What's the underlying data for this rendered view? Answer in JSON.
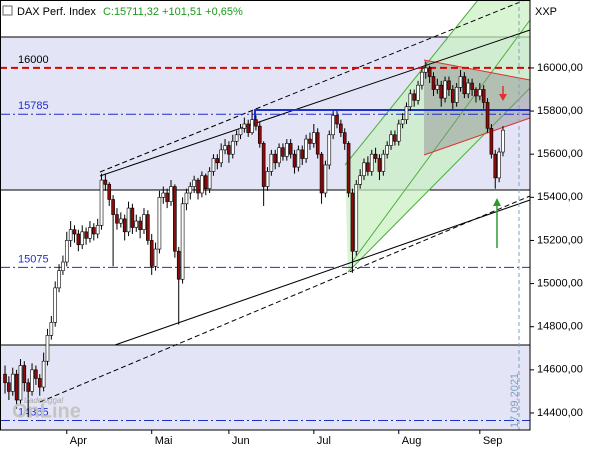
{
  "chart_data": {
    "type": "candlestick",
    "title": "DAX Perf. Index",
    "subtitle": "C:15711,32 +101,51 +0,65%",
    "symbol_label": "XXP",
    "date_marker": "17.09.2021",
    "watermark_small": "tradesignal",
    "watermark_large": "OnLine",
    "up_color": "#ffffff",
    "down_color": "#8b0a0a",
    "ylim": [
      14321,
      16315
    ],
    "yticks": [
      {
        "value": 14400,
        "label": "14400,00"
      },
      {
        "value": 14600,
        "label": "14600,00"
      },
      {
        "value": 14800,
        "label": "14800,00"
      },
      {
        "value": 15000,
        "label": "15000,00"
      },
      {
        "value": 15200,
        "label": "15200,00"
      },
      {
        "value": 15400,
        "label": "15400,00"
      },
      {
        "value": 15600,
        "label": "15600,00"
      },
      {
        "value": 15800,
        "label": "15800,00"
      },
      {
        "value": 16000,
        "label": "16000,00"
      }
    ],
    "xlim": [
      -1.3,
      136
    ],
    "xticks": [
      {
        "value": 16,
        "label": "Apr"
      },
      {
        "value": 38,
        "label": "Mai"
      },
      {
        "value": 58,
        "label": "Jun"
      },
      {
        "value": 80,
        "label": "Jul"
      },
      {
        "value": 102,
        "label": "Aug"
      },
      {
        "value": 123,
        "label": "Sep"
      }
    ],
    "levels": [
      {
        "value": 16000,
        "color": "#e00000",
        "label_color": "#000000",
        "style": "dashed"
      },
      {
        "value": 15785,
        "color": "#1f2fcc",
        "label_color": "#1f2fcc",
        "style": "dashdot"
      },
      {
        "value": 15075,
        "color": "#1f2fcc",
        "label_color": "#1f2fcc",
        "style": "dashdot"
      },
      {
        "value": 14365,
        "color": "#1f2fcc",
        "label_color": "#1f2fcc",
        "style": "dashdot"
      }
    ],
    "ohlc": [
      [
        14580,
        14620,
        14490,
        14540
      ],
      [
        14540,
        14570,
        14460,
        14500
      ],
      [
        14500,
        14610,
        14480,
        14580
      ],
      [
        14580,
        14600,
        14420,
        14460
      ],
      [
        14460,
        14650,
        14440,
        14620
      ],
      [
        14620,
        14640,
        14500,
        14540
      ],
      [
        14540,
        14560,
        14380,
        14500
      ],
      [
        14500,
        14630,
        14480,
        14600
      ],
      [
        14600,
        14620,
        14530,
        14560
      ],
      [
        14560,
        14580,
        14480,
        14520
      ],
      [
        14520,
        14680,
        14500,
        14640
      ],
      [
        14640,
        14790,
        14620,
        14760
      ],
      [
        14760,
        14850,
        14740,
        14820
      ],
      [
        14820,
        15010,
        14800,
        14980
      ],
      [
        14980,
        15090,
        14960,
        15060
      ],
      [
        15060,
        15130,
        15040,
        15100
      ],
      [
        15100,
        15240,
        15080,
        15200
      ],
      [
        15200,
        15290,
        15170,
        15250
      ],
      [
        15250,
        15270,
        15190,
        15230
      ],
      [
        15230,
        15250,
        15150,
        15180
      ],
      [
        15180,
        15270,
        15160,
        15240
      ],
      [
        15240,
        15260,
        15180,
        15210
      ],
      [
        15210,
        15290,
        15190,
        15260
      ],
      [
        15260,
        15280,
        15200,
        15230
      ],
      [
        15230,
        15300,
        15210,
        15270
      ],
      [
        15270,
        15510,
        15250,
        15480
      ],
      [
        15480,
        15510,
        15430,
        15460
      ],
      [
        15460,
        15470,
        15360,
        15390
      ],
      [
        15390,
        15410,
        15080,
        15320
      ],
      [
        15320,
        15350,
        15250,
        15280
      ],
      [
        15280,
        15330,
        15260,
        15300
      ],
      [
        15300,
        15320,
        15200,
        15240
      ],
      [
        15240,
        15380,
        15220,
        15350
      ],
      [
        15350,
        15370,
        15230,
        15260
      ],
      [
        15260,
        15320,
        15240,
        15290
      ],
      [
        15290,
        15310,
        15210,
        15250
      ],
      [
        15250,
        15350,
        15230,
        15320
      ],
      [
        15320,
        15340,
        15180,
        15200
      ],
      [
        15200,
        15230,
        15040,
        15080
      ],
      [
        15080,
        15190,
        15060,
        15160
      ],
      [
        15160,
        15430,
        15140,
        15400
      ],
      [
        15400,
        15450,
        15370,
        15420
      ],
      [
        15420,
        15440,
        15350,
        15380
      ],
      [
        15380,
        15480,
        15360,
        15450
      ],
      [
        15450,
        15460,
        15120,
        15150
      ],
      [
        15150,
        15170,
        14810,
        15020
      ],
      [
        15020,
        15400,
        15000,
        15370
      ],
      [
        15370,
        15440,
        15340,
        15420
      ],
      [
        15420,
        15470,
        15390,
        15450
      ],
      [
        15450,
        15500,
        15420,
        15480
      ],
      [
        15480,
        15490,
        15390,
        15420
      ],
      [
        15420,
        15520,
        15400,
        15500
      ],
      [
        15500,
        15510,
        15410,
        15440
      ],
      [
        15440,
        15540,
        15420,
        15520
      ],
      [
        15520,
        15600,
        15500,
        15580
      ],
      [
        15580,
        15600,
        15530,
        15560
      ],
      [
        15560,
        15650,
        15540,
        15620
      ],
      [
        15620,
        15670,
        15600,
        15640
      ],
      [
        15640,
        15660,
        15560,
        15600
      ],
      [
        15600,
        15690,
        15580,
        15660
      ],
      [
        15660,
        15710,
        15640,
        15690
      ],
      [
        15690,
        15740,
        15670,
        15720
      ],
      [
        15720,
        15770,
        15700,
        15740
      ],
      [
        15740,
        15760,
        15680,
        15700
      ],
      [
        15700,
        15800,
        15690,
        15760
      ],
      [
        15760,
        15780,
        15710,
        15730
      ],
      [
        15730,
        15750,
        15630,
        15650
      ],
      [
        15650,
        15660,
        15360,
        15450
      ],
      [
        15450,
        15540,
        15430,
        15520
      ],
      [
        15520,
        15620,
        15500,
        15600
      ],
      [
        15600,
        15620,
        15530,
        15560
      ],
      [
        15560,
        15650,
        15540,
        15630
      ],
      [
        15630,
        15650,
        15570,
        15590
      ],
      [
        15590,
        15670,
        15570,
        15650
      ],
      [
        15650,
        15670,
        15580,
        15600
      ],
      [
        15600,
        15620,
        15510,
        15540
      ],
      [
        15540,
        15640,
        15520,
        15620
      ],
      [
        15620,
        15640,
        15550,
        15580
      ],
      [
        15580,
        15690,
        15560,
        15670
      ],
      [
        15670,
        15700,
        15620,
        15650
      ],
      [
        15650,
        15740,
        15630,
        15700
      ],
      [
        15700,
        15720,
        15580,
        15600
      ],
      [
        15600,
        15610,
        15370,
        15420
      ],
      [
        15420,
        15570,
        15400,
        15550
      ],
      [
        15550,
        15710,
        15530,
        15690
      ],
      [
        15690,
        15800,
        15670,
        15780
      ],
      [
        15780,
        15800,
        15720,
        15740
      ],
      [
        15740,
        15760,
        15680,
        15700
      ],
      [
        15700,
        15720,
        15620,
        15650
      ],
      [
        15650,
        15660,
        15400,
        15420
      ],
      [
        15420,
        15440,
        15050,
        15150
      ],
      [
        15150,
        15480,
        15130,
        15460
      ],
      [
        15460,
        15530,
        15440,
        15500
      ],
      [
        15500,
        15580,
        15480,
        15560
      ],
      [
        15560,
        15590,
        15500,
        15520
      ],
      [
        15520,
        15620,
        15500,
        15600
      ],
      [
        15600,
        15630,
        15560,
        15580
      ],
      [
        15580,
        15600,
        15480,
        15520
      ],
      [
        15520,
        15620,
        15500,
        15600
      ],
      [
        15600,
        15660,
        15580,
        15640
      ],
      [
        15640,
        15710,
        15620,
        15690
      ],
      [
        15690,
        15710,
        15640,
        15660
      ],
      [
        15660,
        15760,
        15640,
        15740
      ],
      [
        15740,
        15790,
        15720,
        15760
      ],
      [
        15760,
        15840,
        15740,
        15820
      ],
      [
        15820,
        15900,
        15800,
        15880
      ],
      [
        15880,
        15900,
        15820,
        15850
      ],
      [
        15850,
        15940,
        15830,
        15920
      ],
      [
        15920,
        16000,
        15900,
        15980
      ],
      [
        15980,
        16030,
        15950,
        16000
      ],
      [
        16000,
        16010,
        15930,
        15960
      ],
      [
        15960,
        15980,
        15870,
        15900
      ],
      [
        15900,
        15950,
        15880,
        15920
      ],
      [
        15920,
        15940,
        15820,
        15860
      ],
      [
        15860,
        15960,
        15840,
        15940
      ],
      [
        15940,
        15960,
        15870,
        15900
      ],
      [
        15900,
        15920,
        15810,
        15840
      ],
      [
        15840,
        15930,
        15820,
        15910
      ],
      [
        15910,
        15990,
        15890,
        15960
      ],
      [
        15960,
        15980,
        15860,
        15880
      ],
      [
        15880,
        15950,
        15860,
        15930
      ],
      [
        15930,
        15950,
        15870,
        15900
      ],
      [
        15900,
        15910,
        15840,
        15870
      ],
      [
        15870,
        15930,
        15850,
        15900
      ],
      [
        15900,
        15920,
        15810,
        15840
      ],
      [
        15840,
        15860,
        15700,
        15720
      ],
      [
        15720,
        15740,
        15580,
        15600
      ],
      [
        15600,
        15620,
        15440,
        15490
      ],
      [
        15490,
        15630,
        15470,
        15610
      ],
      [
        15610,
        15730,
        15590,
        15711.32
      ]
    ]
  }
}
